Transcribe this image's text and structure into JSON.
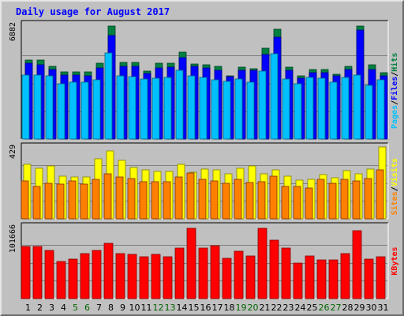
{
  "chart_data": {
    "type": "bar",
    "title": "Daily usage for August 2017",
    "categories": [
      "1",
      "2",
      "3",
      "4",
      "5",
      "6",
      "7",
      "8",
      "9",
      "10",
      "11",
      "12",
      "13",
      "14",
      "15",
      "16",
      "17",
      "18",
      "19",
      "20",
      "21",
      "22",
      "23",
      "24",
      "25",
      "26",
      "27",
      "28",
      "29",
      "30",
      "31"
    ],
    "weekend_days": [
      5,
      6,
      12,
      13,
      19,
      20,
      26,
      27
    ],
    "panels": [
      {
        "y_max_label": "6882",
        "y_max": 6882,
        "legend": [
          {
            "name": "Pages",
            "color": "#00c0ff"
          },
          {
            "name": "Files",
            "color": "#0000ff"
          },
          {
            "name": "Hits",
            "color": "#008040"
          }
        ],
        "series": [
          {
            "name": "Hits",
            "values": [
              4840,
              4830,
              4450,
              4120,
              4120,
              4120,
              4620,
              6930,
              4700,
              4700,
              4150,
              4630,
              4640,
              5330,
              4590,
              4520,
              4440,
              3860,
              4390,
              4280,
              5560,
              6720,
              4390,
              3840,
              4240,
              4260,
              3970,
              4460,
              6930,
              4540,
              4060
            ]
          },
          {
            "name": "Files",
            "values": [
              4660,
              4550,
              4250,
              3900,
              3930,
              3880,
              4340,
              6330,
              4450,
              4460,
              4010,
              4370,
              4380,
              4980,
              4440,
              4360,
              4220,
              3800,
              4220,
              4190,
              5180,
              6220,
              4190,
              3730,
              4070,
              4050,
              3880,
              4270,
              6670,
              4230,
              3860
            ]
          },
          {
            "name": "Pages",
            "values": [
              3890,
              3890,
              3850,
              3380,
              3460,
              3500,
              3600,
              5260,
              3880,
              3810,
              3680,
              3730,
              3750,
              4210,
              3860,
              3760,
              3610,
              3510,
              3690,
              3480,
              4130,
              5230,
              3660,
              3370,
              3790,
              3720,
              3460,
              3790,
              3900,
              3300,
              3600
            ]
          }
        ]
      },
      {
        "y_max_label": "429",
        "y_max": 429,
        "legend": [
          {
            "name": "Sites",
            "color": "#ff8000"
          },
          {
            "name": "Visits",
            "color": "#ffff00"
          }
        ],
        "series": [
          {
            "name": "Visits",
            "values": [
              325,
              300,
              314,
              252,
              247,
              248,
              356,
              405,
              349,
              307,
              293,
              281,
              284,
              323,
              278,
              294,
              291,
              270,
              300,
              315,
              270,
              292,
              253,
              232,
              233,
              265,
              246,
              287,
              266,
              294,
              429
            ]
          },
          {
            "name": "Sites",
            "values": [
              227,
              195,
              210,
              209,
              225,
              207,
              237,
              266,
              250,
              240,
              223,
              220,
              222,
              247,
              272,
              233,
              227,
              213,
              237,
              218,
              222,
              253,
              193,
              194,
              182,
              235,
              210,
              236,
              225,
              242,
              292
            ]
          }
        ]
      },
      {
        "y_max_label": "101666",
        "y_max": 101666,
        "legend": [
          {
            "name": "KBytes",
            "color": "#ff0000"
          }
        ],
        "series": [
          {
            "name": "KBytes",
            "values": [
              73080,
              74080,
              67940,
              52920,
              55600,
              63040,
              67740,
              77890,
              62990,
              61970,
              59580,
              62090,
              59240,
              71340,
              98970,
              71620,
              74550,
              56660,
              67110,
              60050,
              98970,
              82550,
              71090,
              49720,
              60420,
              54710,
              54760,
              64050,
              96260,
              55430,
              59600
            ]
          }
        ]
      }
    ]
  }
}
